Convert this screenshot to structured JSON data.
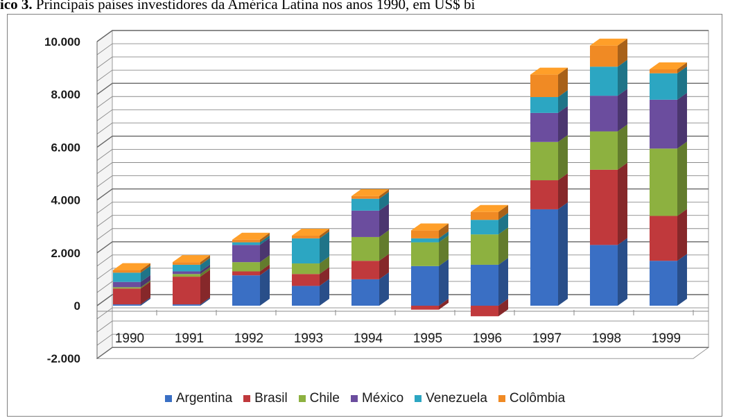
{
  "caption": {
    "prefix": "ico 3.",
    "text": " Principais países investidores da América Latina nos anos 1990, em US$ bi"
  },
  "chart_data": {
    "type": "bar",
    "stacked": true,
    "three_d": true,
    "categories": [
      "1990",
      "1991",
      "1992",
      "1993",
      "1994",
      "1995",
      "1996",
      "1997",
      "1998",
      "1999"
    ],
    "ylim": [
      -2000,
      10000
    ],
    "yticks": [
      -2000,
      0,
      2000,
      4000,
      6000,
      8000,
      10000
    ],
    "ytick_labels": [
      "-2.000",
      "0",
      "2.000",
      "4.000",
      "6.000",
      "8.000",
      "10.000"
    ],
    "grid": true,
    "legend_position": "bottom",
    "series": [
      {
        "name": "Argentina",
        "color": "#3a6fc4",
        "values": [
          50,
          50,
          1150,
          750,
          1000,
          1500,
          1550,
          3650,
          2300,
          1700
        ]
      },
      {
        "name": "Brasil",
        "color": "#c0393c",
        "values": [
          600,
          1050,
          150,
          450,
          700,
          -150,
          -400,
          1100,
          2850,
          1700
        ]
      },
      {
        "name": "Chile",
        "color": "#8db140",
        "values": [
          50,
          100,
          350,
          400,
          900,
          900,
          1150,
          1450,
          1450,
          2550
        ]
      },
      {
        "name": "México",
        "color": "#6b4d9e",
        "values": [
          200,
          100,
          650,
          0,
          1000,
          0,
          0,
          1100,
          1350,
          1850
        ]
      },
      {
        "name": "Venezuela",
        "color": "#2ca6c2",
        "values": [
          350,
          250,
          100,
          950,
          450,
          150,
          550,
          600,
          1100,
          1000
        ]
      },
      {
        "name": "Colômbia",
        "color": "#f08a24",
        "values": [
          100,
          100,
          100,
          100,
          100,
          300,
          300,
          850,
          800,
          150
        ]
      }
    ]
  }
}
